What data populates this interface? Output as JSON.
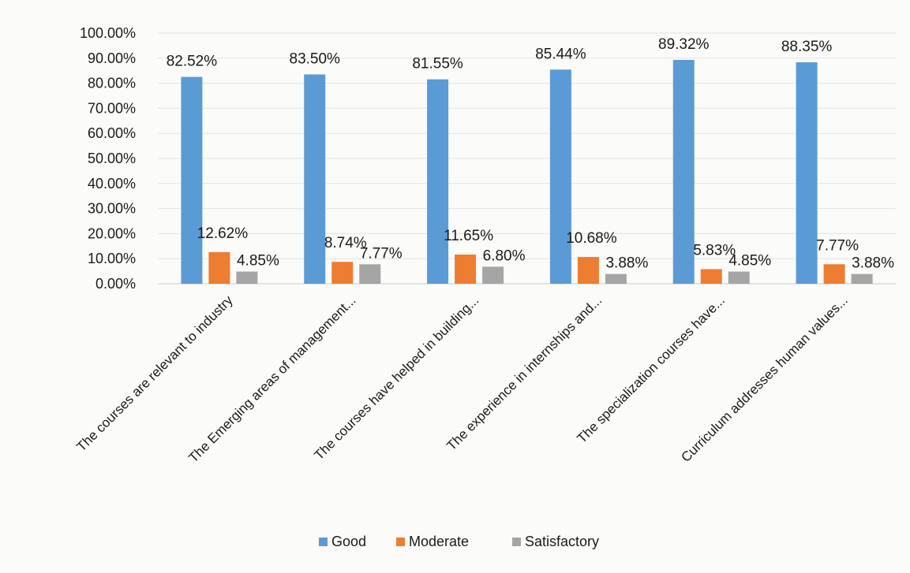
{
  "chart_data": {
    "type": "bar",
    "categories": [
      "The courses are relevant to industry",
      "The Emerging areas of management...",
      "The courses have helped in building...",
      "The experience in internships and...",
      "The specialization courses have...",
      "Curriculum addresses human values..."
    ],
    "series": [
      {
        "name": "Good",
        "values": [
          82.52,
          83.5,
          81.55,
          85.44,
          89.32,
          88.35
        ],
        "labels": [
          "82.52%",
          "83.50%",
          "81.55%",
          "85.44%",
          "89.32%",
          "88.35%"
        ],
        "color": "#5b9bd5"
      },
      {
        "name": "Moderate",
        "values": [
          12.62,
          8.74,
          11.65,
          10.68,
          5.83,
          7.77
        ],
        "labels": [
          "12.62%",
          "8.74%",
          "11.65%",
          "10.68%",
          "5.83%",
          "7.77%"
        ],
        "color": "#ed7d31"
      },
      {
        "name": "Satisfactory",
        "values": [
          4.85,
          7.77,
          6.8,
          3.88,
          4.85,
          3.88
        ],
        "labels": [
          "4.85%",
          "7.77%",
          "6.80%",
          "3.88%",
          "4.85%",
          "3.88%"
        ],
        "color": "#a5a5a5"
      }
    ],
    "y_ticks": [
      0,
      10,
      20,
      30,
      40,
      50,
      60,
      70,
      80,
      90,
      100
    ],
    "y_tick_labels": [
      "0.00%",
      "10.00%",
      "20.00%",
      "30.00%",
      "40.00%",
      "50.00%",
      "60.00%",
      "70.00%",
      "80.00%",
      "90.00%",
      "100.00%"
    ],
    "ylim": [
      0,
      100
    ],
    "grid": true,
    "legend_position": "bottom",
    "title": "",
    "xlabel": "",
    "ylabel": ""
  }
}
